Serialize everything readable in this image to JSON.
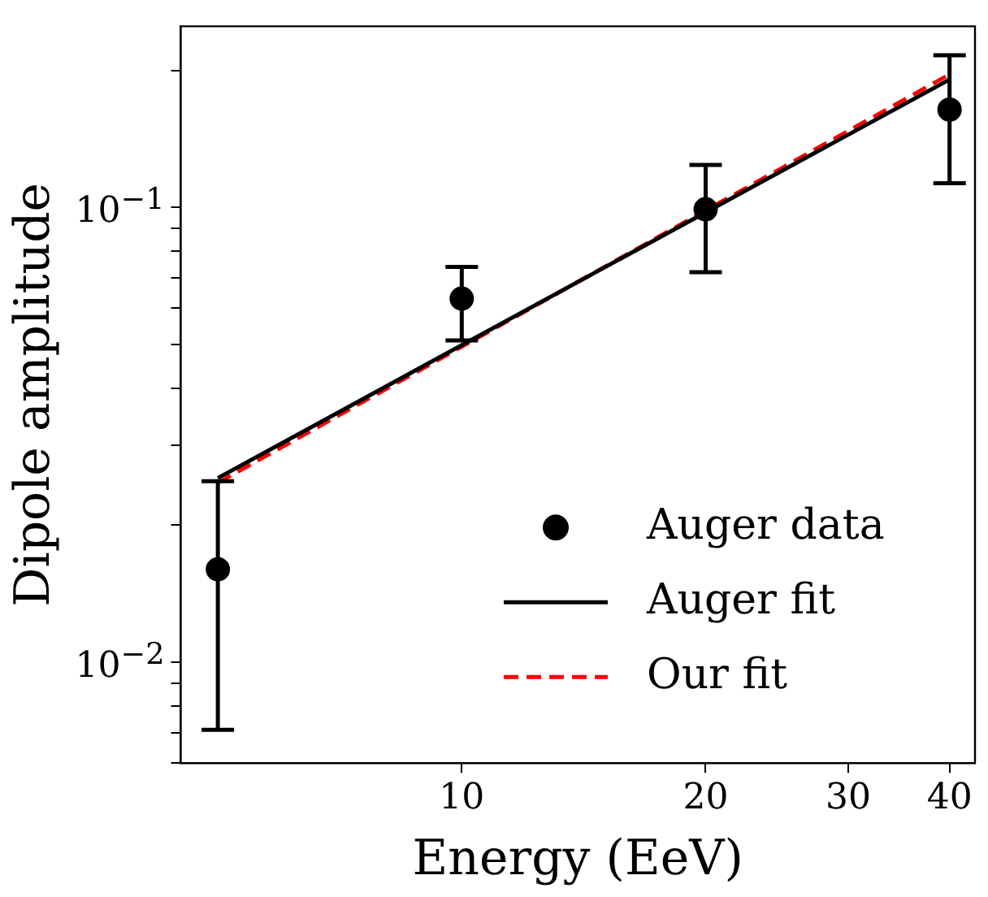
{
  "chart_data": {
    "type": "scatter",
    "xlabel": "Energy (EeV)",
    "ylabel": "Dipole amplitude",
    "log": "xy",
    "xlim": [
      4.5,
      43
    ],
    "ylim": [
      0.006,
      0.25
    ],
    "xticks": [
      10,
      20,
      30,
      40
    ],
    "yticks": [
      {
        "value": 0.006,
        "label": null
      },
      {
        "value": 0.007,
        "label": null
      },
      {
        "value": 0.008,
        "label": null
      },
      {
        "value": 0.009,
        "label": null
      },
      {
        "value": 0.01,
        "label": "10$^{−2}$"
      },
      {
        "value": 0.02,
        "label": null
      },
      {
        "value": 0.03,
        "label": null
      },
      {
        "value": 0.04,
        "label": null
      },
      {
        "value": 0.05,
        "label": null
      },
      {
        "value": 0.06,
        "label": null
      },
      {
        "value": 0.07,
        "label": null
      },
      {
        "value": 0.08,
        "label": null
      },
      {
        "value": 0.09,
        "label": null
      },
      {
        "value": 0.1,
        "label": "10$^{−1}$"
      },
      {
        "value": 0.2,
        "label": null
      }
    ],
    "grid": false,
    "legend": "bottom right",
    "series": [
      {
        "name": "Auger data",
        "type": "scatter",
        "color": "#000000",
        "marker": "circle",
        "x": [
          5,
          10,
          20,
          40
        ],
        "values": [
          0.016,
          0.063,
          0.099,
          0.164
        ],
        "errors": [
          [
            0.0071,
            0.025
          ],
          [
            0.051,
            0.074
          ],
          [
            0.072,
            0.124
          ],
          [
            0.113,
            0.216
          ]
        ]
      },
      {
        "name": "Auger fit",
        "type": "line",
        "color": "#000000",
        "line_style": "solid",
        "marker": "none",
        "x": [
          5,
          40
        ],
        "values": [
          0.0254,
          0.191
        ]
      },
      {
        "name": "Our fit",
        "type": "line",
        "color": "#ff0000",
        "line_style": "dashed",
        "marker": "none",
        "x": [
          5,
          40
        ],
        "values": [
          0.0248,
          0.196
        ]
      }
    ]
  }
}
